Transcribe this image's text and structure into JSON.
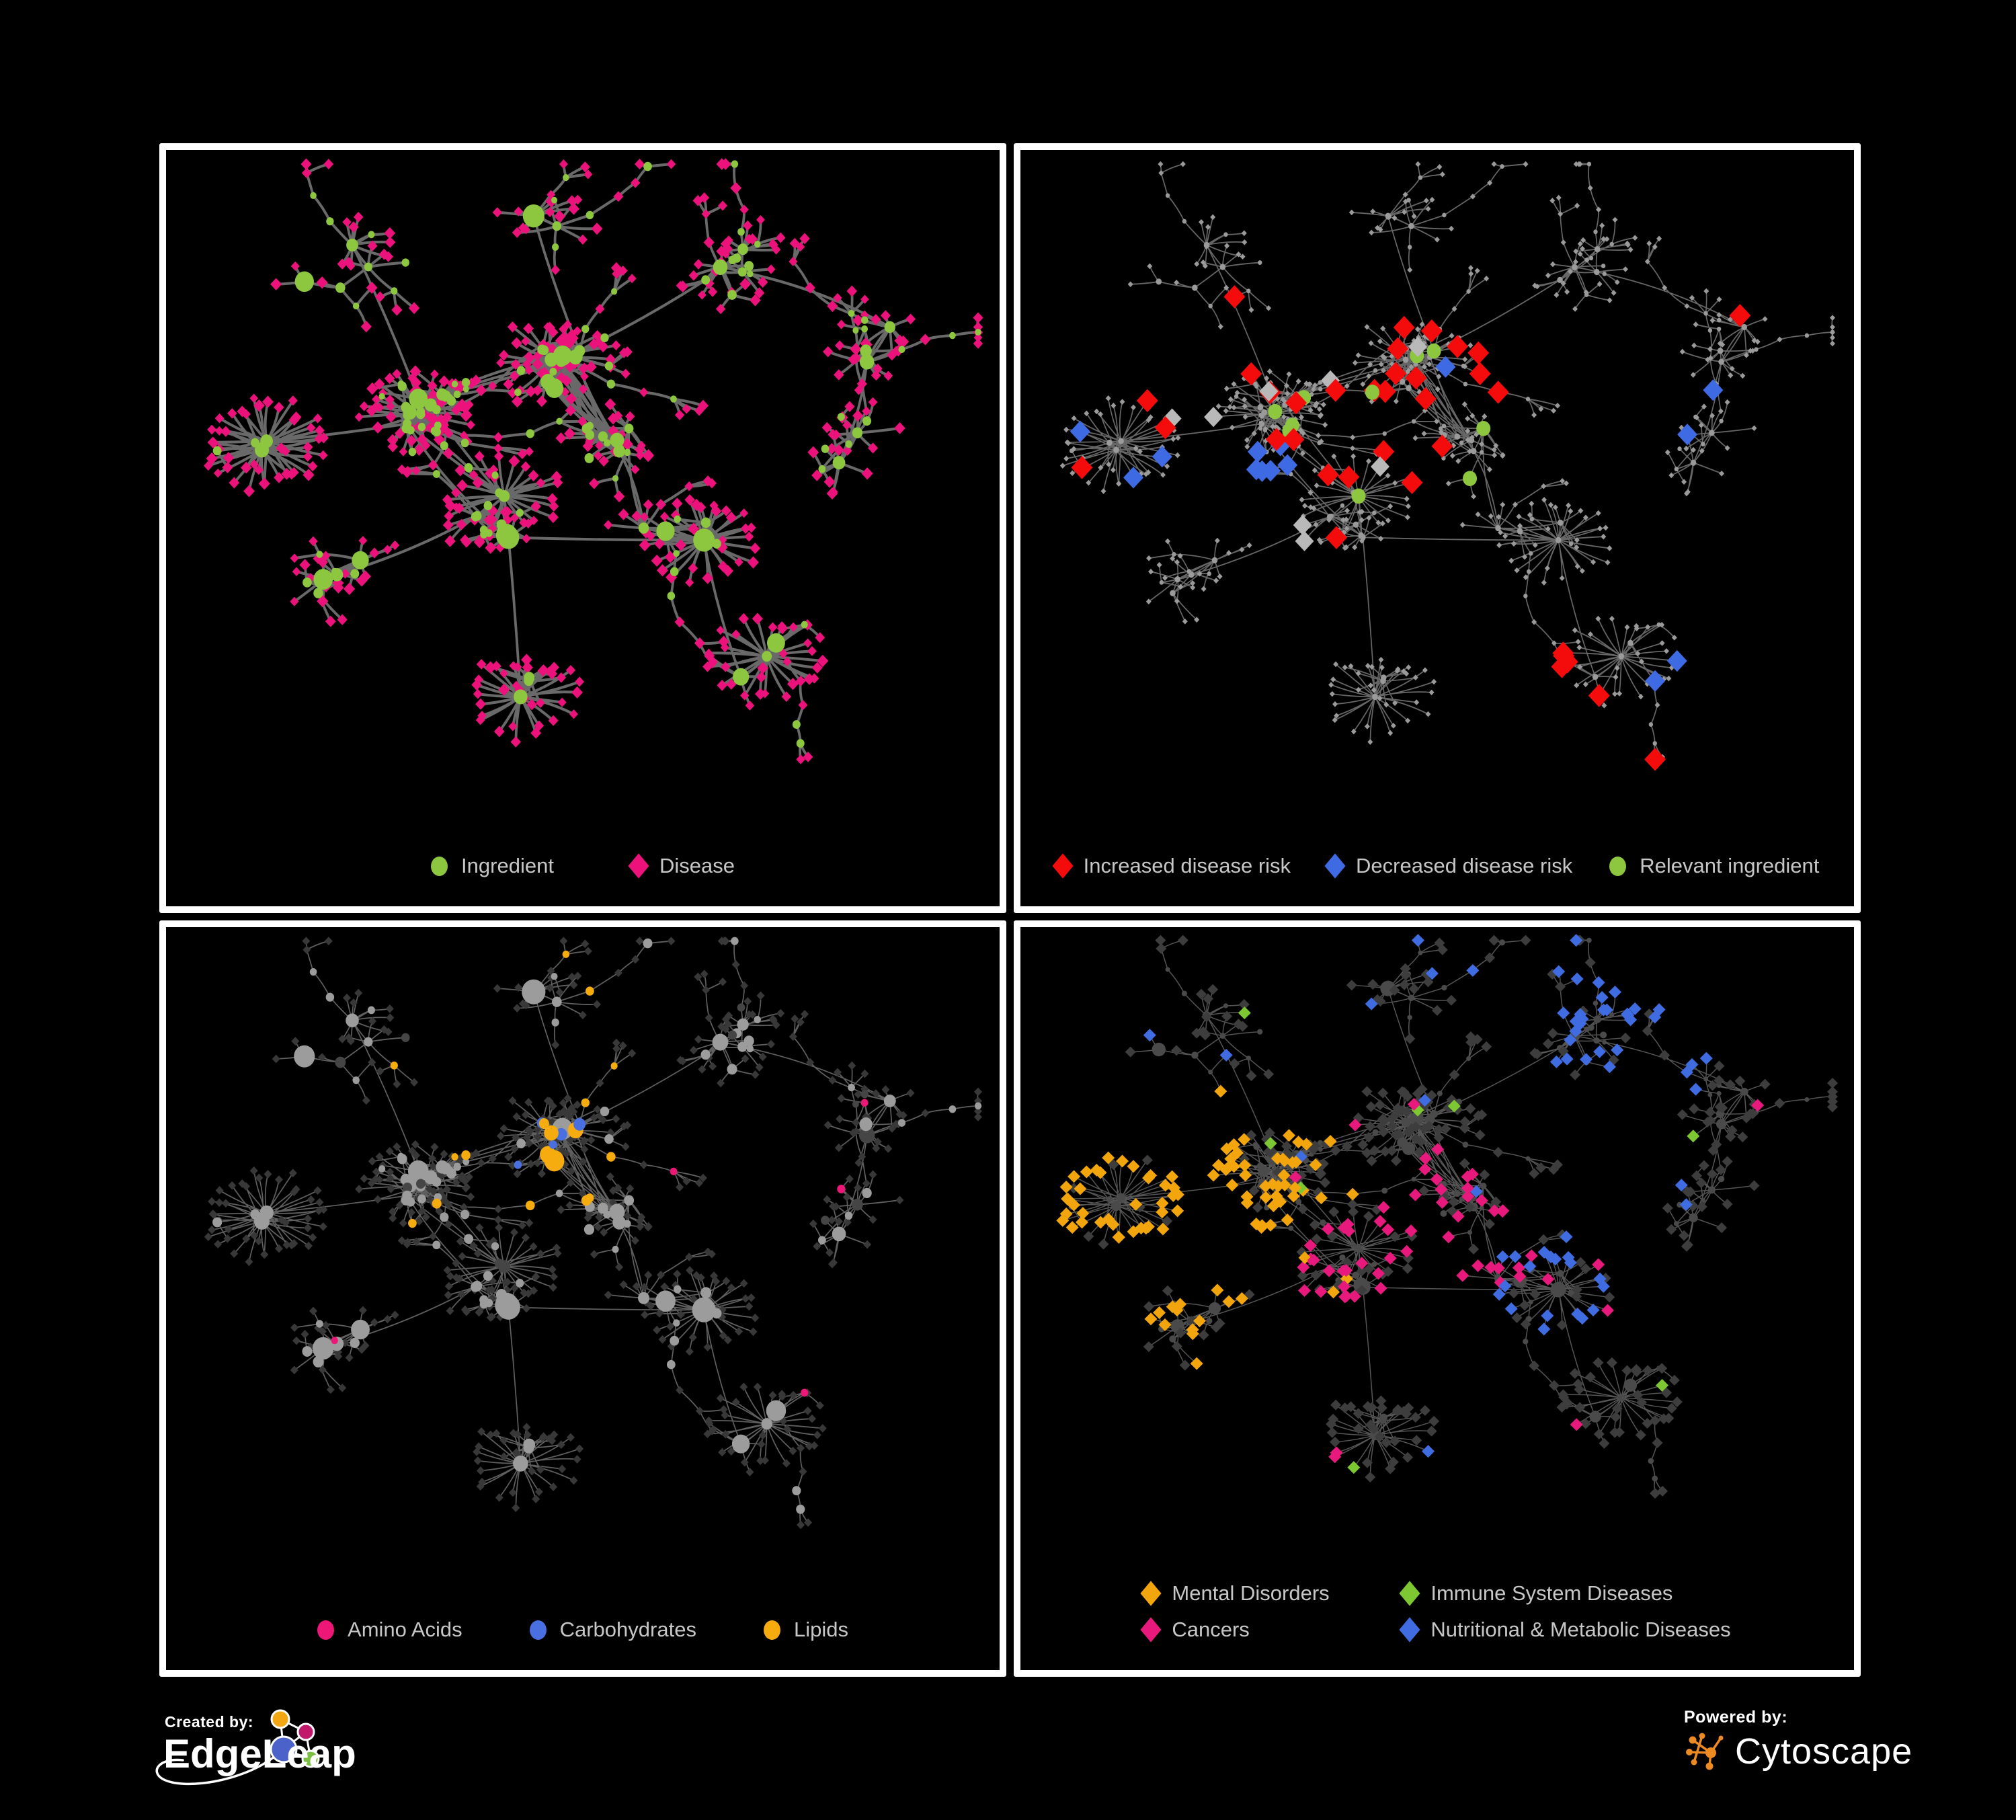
{
  "figure": {
    "background": "#000000",
    "panel_border_color": "#ffffff",
    "legend_text_color": "#c7c7c7"
  },
  "footer": {
    "created_by_label": "Created by:",
    "created_by_brand": "EdgeLeap",
    "powered_by_label": "Powered by:",
    "powered_by_brand": "Cytoscape",
    "edgeleap_node_colors": [
      "#f0a713",
      "#c2186b",
      "#4a62c9",
      "#7cc043"
    ],
    "cytoscape_orange": "#ee8a22"
  },
  "chart_data": {
    "type": "network",
    "description": "Four panels showing the same ingredient-disease association network with different color codings. Circles = ingredients, diamonds = diseases.",
    "node_semantics": {
      "circle": "Ingredient",
      "diamond": "Disease"
    },
    "generator": {
      "seed": 11,
      "clusters": [
        {
          "x": 0.3,
          "y": 0.36,
          "hubs": 9,
          "spread": 0.07
        },
        {
          "x": 0.48,
          "y": 0.3,
          "hubs": 7,
          "spread": 0.06
        },
        {
          "x": 0.4,
          "y": 0.52,
          "hubs": 6,
          "spread": 0.06
        },
        {
          "x": 0.2,
          "y": 0.16,
          "hubs": 4,
          "spread": 0.06
        },
        {
          "x": 0.45,
          "y": 0.1,
          "hubs": 3,
          "spread": 0.05
        },
        {
          "x": 0.68,
          "y": 0.16,
          "hubs": 4,
          "spread": 0.06
        },
        {
          "x": 0.86,
          "y": 0.28,
          "hubs": 3,
          "spread": 0.05
        },
        {
          "x": 0.12,
          "y": 0.42,
          "hubs": 3,
          "spread": 0.05
        },
        {
          "x": 0.22,
          "y": 0.62,
          "hubs": 4,
          "spread": 0.06
        },
        {
          "x": 0.42,
          "y": 0.78,
          "hubs": 3,
          "spread": 0.05,
          "fan": true
        },
        {
          "x": 0.62,
          "y": 0.56,
          "hubs": 4,
          "spread": 0.06,
          "fan": true
        },
        {
          "x": 0.72,
          "y": 0.74,
          "hubs": 3,
          "spread": 0.06
        },
        {
          "x": 0.82,
          "y": 0.42,
          "hubs": 2,
          "spread": 0.04
        },
        {
          "x": 0.55,
          "y": 0.42,
          "hubs": 5,
          "spread": 0.05
        }
      ]
    },
    "panels": [
      {
        "id": "ingredient-disease",
        "legend_layout": "row",
        "legend_rows": [
          [
            {
              "shape": "circle",
              "color": "#8dc63f",
              "label": "Ingredient"
            },
            {
              "shape": "diamond",
              "color": "#ec127b",
              "label": "Disease"
            }
          ]
        ],
        "style": {
          "mode": "base",
          "edge": {
            "color": "#747474",
            "width": 3.8,
            "opacity": 0.9
          },
          "ingredient_color": "#8dc63f",
          "disease_color": "#ec127b"
        }
      },
      {
        "id": "disease-risk",
        "legend_layout": "row",
        "legend_rows": [
          [
            {
              "shape": "diamond",
              "color": "#f40b0b",
              "label": "Increased disease risk"
            },
            {
              "shape": "diamond",
              "color": "#3e6be4",
              "label": "Decreased disease risk"
            },
            {
              "shape": "circle",
              "color": "#8dc63f",
              "label": "Relevant ingredient"
            }
          ]
        ],
        "style": {
          "mode": "risk",
          "edge": {
            "color": "#7f7f7f",
            "width": 1.7,
            "opacity": 0.8
          },
          "dot_color": "#9a9a9a",
          "increased_color": "#f40b0b",
          "decreased_color": "#3e6be4",
          "unchanged_color": "#b9b9b9",
          "relevant_color": "#8dc63f"
        }
      },
      {
        "id": "nutrient-classes",
        "legend_layout": "row",
        "legend_rows": [
          [
            {
              "shape": "circle",
              "color": "#ec1777",
              "label": "Amino Acids"
            },
            {
              "shape": "circle",
              "color": "#4a6fe1",
              "label": "Carbohydrates"
            },
            {
              "shape": "circle",
              "color": "#f6ac0e",
              "label": "Lipids"
            }
          ]
        ],
        "style": {
          "mode": "nutrient",
          "edge": {
            "color": "#bdbdbd",
            "width": 1.7,
            "opacity": 0.5
          },
          "default_color": "#9c9c9c",
          "dark_color": "#454545",
          "amino_color": "#ec1777",
          "carb_color": "#4a6fe1",
          "lipid_color": "#f6ac0e",
          "disease_color": "#383838"
        }
      },
      {
        "id": "disease-categories",
        "legend_layout": "grid",
        "legend_rows": [
          [
            {
              "shape": "diamond",
              "color": "#f2a50c",
              "label": "Mental Disorders"
            },
            {
              "shape": "diamond",
              "color": "#7dc832",
              "label": "Immune System Diseases"
            }
          ],
          [
            {
              "shape": "diamond",
              "color": "#e8197d",
              "label": "Cancers"
            },
            {
              "shape": "diamond",
              "color": "#3f6ce0",
              "label": "Nutritional & Metabolic Diseases"
            }
          ]
        ],
        "style": {
          "mode": "category",
          "edge": {
            "color": "#9b9b9b",
            "width": 1.5,
            "opacity": 0.55
          },
          "ingredient_color": "#4a4a4a",
          "default_color": "#3d3d3d",
          "mental_color": "#f2a50c",
          "immune_color": "#7dc832",
          "cancer_color": "#e8197d",
          "nutritional_color": "#3f6ce0"
        }
      }
    ]
  }
}
